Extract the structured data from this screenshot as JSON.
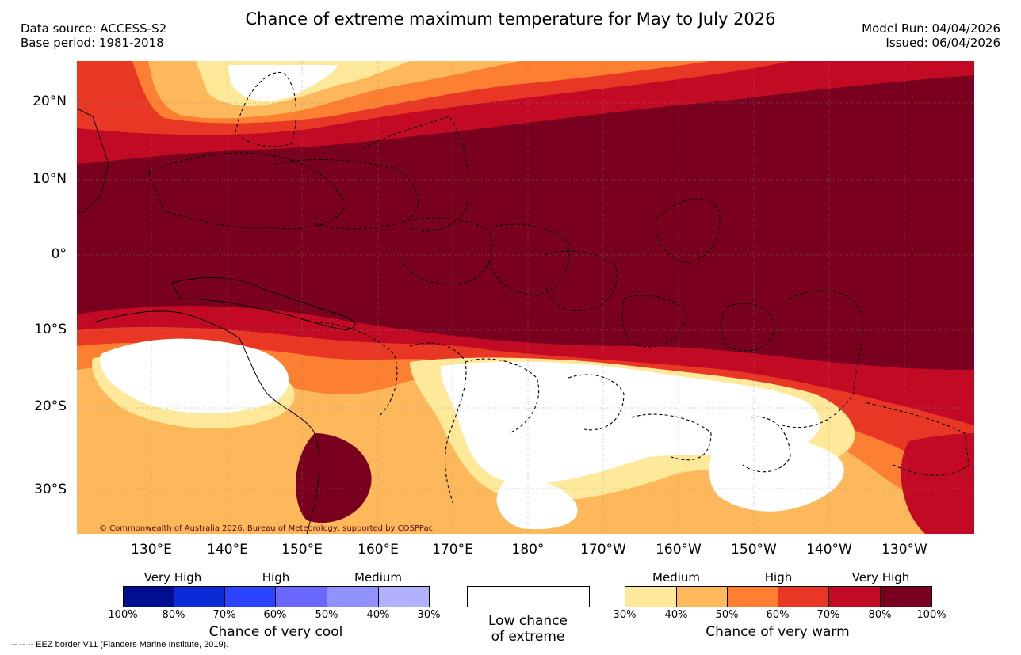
{
  "header": {
    "title": "Chance of extreme maximum temperature for May to July 2026",
    "data_source": "Data source: ACCESS-S2",
    "base_period": "Base period: 1981-2018",
    "model_run": "Model Run: 04/04/2026",
    "issued": "Issued: 06/04/2026"
  },
  "map": {
    "lat_labels": [
      "20°N",
      "10°N",
      "0°",
      "10°S",
      "20°S",
      "30°S"
    ],
    "lon_labels": [
      "130°E",
      "140°E",
      "150°E",
      "160°E",
      "170°E",
      "180°",
      "170°W",
      "160°W",
      "150°W",
      "140°W",
      "130°W"
    ],
    "copyright": "© Commonwealth of Australia 2026, Bureau of Meteorology, supported by COSPPac"
  },
  "legend": {
    "cool": {
      "labels": [
        "Very High",
        "High",
        "Medium"
      ],
      "colors": [
        "#000f8f",
        "#0a2bd6",
        "#2b44ff",
        "#6a68ff",
        "#9191ff",
        "#b1b1ff"
      ],
      "ticks": [
        "100%",
        "80%",
        "70%",
        "60%",
        "50%",
        "40%",
        "30%"
      ],
      "title": "Chance of very cool"
    },
    "low": {
      "color": "#ffffff",
      "title_line1": "Low chance",
      "title_line2": "of extreme"
    },
    "warm": {
      "labels": [
        "Medium",
        "High",
        "Very High"
      ],
      "colors": [
        "#fee99a",
        "#fdb85c",
        "#fc7f32",
        "#e83724",
        "#c20a24",
        "#7a0020"
      ],
      "ticks": [
        "30%",
        "40%",
        "50%",
        "60%",
        "70%",
        "80%",
        "100%"
      ],
      "title": "Chance of very warm"
    }
  },
  "footer": {
    "eez_note": "--  --  -- EEZ border V11 (Flanders Marine Institute, 2019)."
  }
}
